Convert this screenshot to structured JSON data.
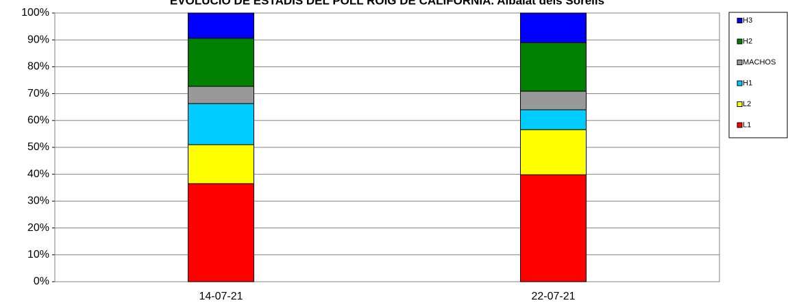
{
  "chart_data": {
    "type": "stacked_bar",
    "title": "EVOLUCIÓ DE ESTADIS DEL POLL ROIG DE CALIFORNIA. Albalat dels Sorells",
    "categories": [
      "14-07-21",
      "22-07-21"
    ],
    "series": [
      {
        "name": "L1",
        "color": "#ff0000",
        "values": [
          36.5,
          39.8
        ]
      },
      {
        "name": "L2",
        "color": "#ffff00",
        "values": [
          14.5,
          16.8
        ]
      },
      {
        "name": "H1",
        "color": "#00ccff",
        "values": [
          15.3,
          7.4
        ]
      },
      {
        "name": "MACHOS",
        "color": "#999999",
        "values": [
          6.4,
          6.9
        ]
      },
      {
        "name": "H2",
        "color": "#008000",
        "values": [
          17.9,
          18.1
        ]
      },
      {
        "name": "H3",
        "color": "#0000ff",
        "values": [
          9.4,
          11.0
        ]
      }
    ],
    "ylim": [
      0,
      100
    ],
    "yticks": [
      {
        "value": 0,
        "label": "0%"
      },
      {
        "value": 10,
        "label": "10%"
      },
      {
        "value": 20,
        "label": "20%"
      },
      {
        "value": 30,
        "label": "30%"
      },
      {
        "value": 40,
        "label": "40%"
      },
      {
        "value": 50,
        "label": "50%"
      },
      {
        "value": 60,
        "label": "60%"
      },
      {
        "value": 70,
        "label": "70%"
      },
      {
        "value": 80,
        "label": "80%"
      },
      {
        "value": 90,
        "label": "90%"
      },
      {
        "value": 100,
        "label": "100%"
      }
    ],
    "grid": true,
    "legend": "right"
  }
}
